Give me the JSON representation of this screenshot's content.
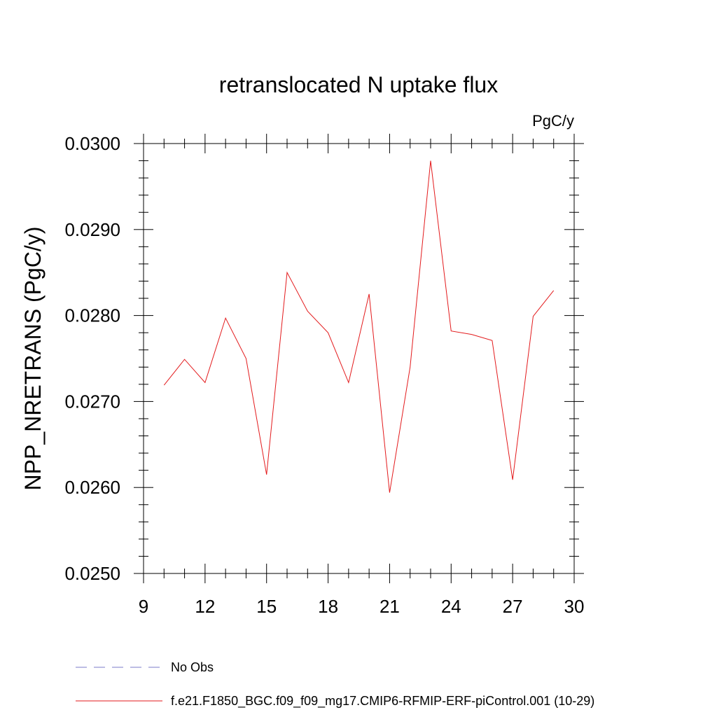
{
  "chart_data": {
    "type": "line",
    "title": "retranslocated N uptake flux",
    "units_label": "PgC/y",
    "ylabel": "NPP_NRETRANS  (PgC/y)",
    "xlabel": "",
    "xlim": [
      9,
      30
    ],
    "ylim": [
      0.025,
      0.03
    ],
    "x_ticks": [
      9,
      12,
      15,
      18,
      21,
      24,
      27,
      30
    ],
    "y_ticks": [
      "0.0250",
      "0.0260",
      "0.0270",
      "0.0280",
      "0.0290",
      "0.0300"
    ],
    "y_tick_values": [
      0.025,
      0.026,
      0.027,
      0.028,
      0.029,
      0.03
    ],
    "x_minor_step": 1,
    "y_minor_step": 0.0002,
    "series": [
      {
        "name": "f.e21.F1850_BGC.f09_f09_mg17.CMIP6-RFMIP-ERF-piControl.001 (10-29)",
        "color": "#e31a1c",
        "x": [
          10,
          11,
          12,
          13,
          14,
          15,
          16,
          17,
          18,
          19,
          20,
          21,
          22,
          23,
          24,
          25,
          26,
          27,
          28,
          29
        ],
        "values": [
          0.02719,
          0.02749,
          0.02722,
          0.02797,
          0.0275,
          0.02615,
          0.0285,
          0.02805,
          0.0278,
          0.02722,
          0.02825,
          0.02594,
          0.0274,
          0.0298,
          0.02782,
          0.02778,
          0.02771,
          0.02609,
          0.02799,
          0.02829
        ]
      }
    ],
    "legend": [
      {
        "label": "No Obs",
        "style": "dashed",
        "color": "#7b7bc9"
      },
      {
        "label": "f.e21.F1850_BGC.f09_f09_mg17.CMIP6-RFMIP-ERF-piControl.001 (10-29)",
        "style": "solid",
        "color": "#e31a1c"
      }
    ],
    "legend_position": "bottom",
    "grid": false
  }
}
